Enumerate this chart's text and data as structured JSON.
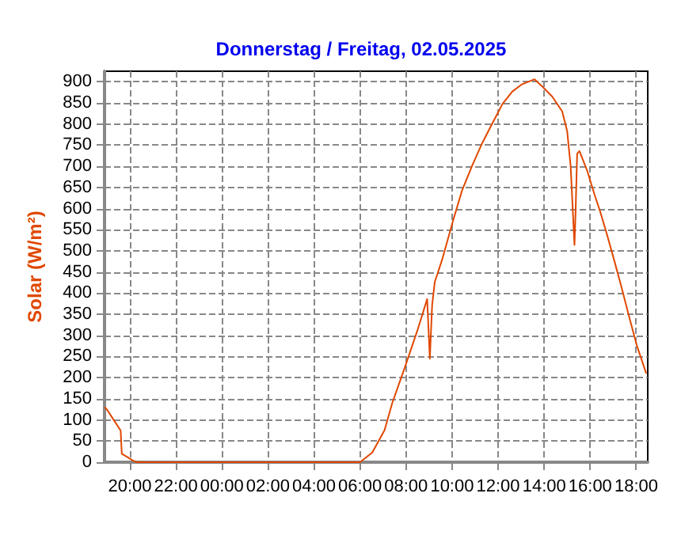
{
  "chart_data": {
    "type": "line",
    "title": "Donnerstag / Freitag, 02.05.2025",
    "ylabel": "Solar (W/m²)",
    "xlim": [
      "2025-05-01T18:54",
      "2025-05-02T18:30"
    ],
    "ylim": [
      0,
      925
    ],
    "xticks": [
      {
        "value": "2025-05-01T20:00",
        "label": "20:00"
      },
      {
        "value": "2025-05-01T22:00",
        "label": "22:00"
      },
      {
        "value": "2025-05-02T00:00",
        "label": "00:00"
      },
      {
        "value": "2025-05-02T02:00",
        "label": "02:00"
      },
      {
        "value": "2025-05-02T04:00",
        "label": "04:00"
      },
      {
        "value": "2025-05-02T06:00",
        "label": "06:00"
      },
      {
        "value": "2025-05-02T08:00",
        "label": "08:00"
      },
      {
        "value": "2025-05-02T10:00",
        "label": "10:00"
      },
      {
        "value": "2025-05-02T12:00",
        "label": "12:00"
      },
      {
        "value": "2025-05-02T14:00",
        "label": "14:00"
      },
      {
        "value": "2025-05-02T16:00",
        "label": "16:00"
      },
      {
        "value": "2025-05-02T18:00",
        "label": "18:00"
      }
    ],
    "yticks": [
      0,
      50,
      100,
      150,
      200,
      250,
      300,
      350,
      400,
      450,
      500,
      550,
      600,
      650,
      700,
      750,
      800,
      850,
      900
    ],
    "grid": true,
    "marker": "none",
    "line_style": "solid",
    "series": [
      {
        "color": "#e04800",
        "x": [
          "2025-05-01T18:54",
          "2025-05-01T19:00",
          "2025-05-01T19:18",
          "2025-05-01T19:36",
          "2025-05-01T19:39",
          "2025-05-01T19:54",
          "2025-05-01T20:06",
          "2025-05-01T20:18",
          "2025-05-02T06:00",
          "2025-05-02T06:32",
          "2025-05-02T07:04",
          "2025-05-02T07:24",
          "2025-05-02T07:56",
          "2025-05-02T08:29",
          "2025-05-02T08:55",
          "2025-05-02T09:02",
          "2025-05-02T09:08",
          "2025-05-02T09:15",
          "2025-05-02T09:34",
          "2025-05-02T10:03",
          "2025-05-02T10:26",
          "2025-05-02T10:52",
          "2025-05-02T11:18",
          "2025-05-02T11:44",
          "2025-05-02T12:11",
          "2025-05-02T12:37",
          "2025-05-02T13:02",
          "2025-05-02T13:35",
          "2025-05-02T13:55",
          "2025-05-02T14:21",
          "2025-05-02T14:47",
          "2025-05-02T15:00",
          "2025-05-02T15:09",
          "2025-05-02T15:19",
          "2025-05-02T15:22",
          "2025-05-02T15:26",
          "2025-05-02T15:32",
          "2025-05-02T15:52",
          "2025-05-02T16:12",
          "2025-05-02T16:25",
          "2025-05-02T16:44",
          "2025-05-02T17:04",
          "2025-05-02T17:23",
          "2025-05-02T17:43",
          "2025-05-02T18:02",
          "2025-05-02T18:26"
        ],
        "values": [
          130,
          125,
          100,
          75,
          20,
          12,
          5,
          0,
          0,
          23,
          76,
          140,
          222,
          310,
          386,
          245,
          372,
          427,
          479,
          573,
          643,
          701,
          754,
          800,
          847,
          877,
          894,
          906,
          889,
          865,
          830,
          783,
          701,
          514,
          596,
          730,
          736,
          690,
          631,
          596,
          538,
          473,
          409,
          339,
          275,
          210
        ]
      }
    ]
  }
}
